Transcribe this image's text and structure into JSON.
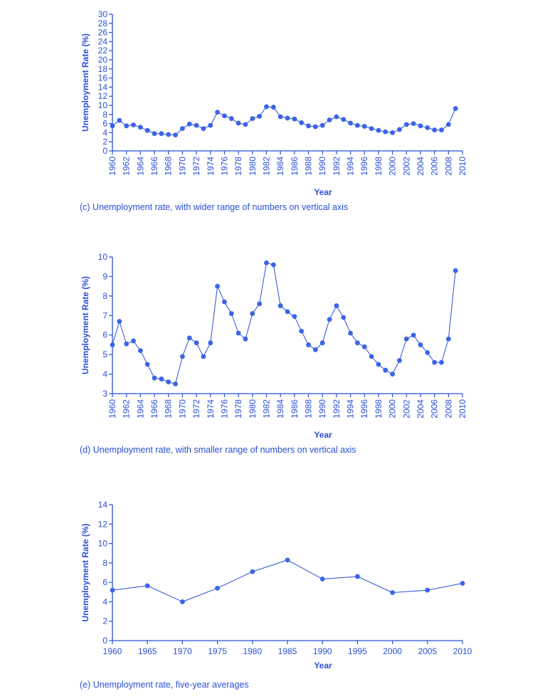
{
  "colors": {
    "accent": "#2a4fd6",
    "point": "#3a64e8"
  },
  "chart_data": [
    {
      "type": "line",
      "caption": "(c) Unemployment rate, with wider range of numbers on vertical axis",
      "xlabel": "Year",
      "ylabel": "Unemployment Rate (%)",
      "xlim": [
        1960,
        2010
      ],
      "ylim": [
        0,
        30
      ],
      "xticks": [
        1960,
        1962,
        1964,
        1966,
        1968,
        1970,
        1972,
        1974,
        1976,
        1978,
        1980,
        1982,
        1984,
        1986,
        1988,
        1990,
        1992,
        1994,
        1996,
        1998,
        2000,
        2002,
        2004,
        2006,
        2008,
        2010
      ],
      "yticks": [
        0,
        2,
        4,
        6,
        8,
        10,
        12,
        14,
        16,
        18,
        20,
        22,
        24,
        26,
        28,
        30
      ],
      "grid": false,
      "series": [
        {
          "x": [
            1960,
            1961,
            1962,
            1963,
            1964,
            1965,
            1966,
            1967,
            1968,
            1969,
            1970,
            1971,
            1972,
            1973,
            1974,
            1975,
            1976,
            1977,
            1978,
            1979,
            1980,
            1981,
            1982,
            1983,
            1984,
            1985,
            1986,
            1987,
            1988,
            1989,
            1990,
            1991,
            1992,
            1993,
            1994,
            1995,
            1996,
            1997,
            1998,
            1999,
            2000,
            2001,
            2002,
            2003,
            2004,
            2005,
            2006,
            2007,
            2008,
            2009
          ],
          "values": [
            5.5,
            6.7,
            5.5,
            5.7,
            5.2,
            4.5,
            3.8,
            3.8,
            3.6,
            3.5,
            4.9,
            5.9,
            5.6,
            4.9,
            5.6,
            8.5,
            7.7,
            7.1,
            6.1,
            5.8,
            7.1,
            7.6,
            9.7,
            9.6,
            7.5,
            7.2,
            7.0,
            6.2,
            5.5,
            5.3,
            5.6,
            6.8,
            7.5,
            6.9,
            6.1,
            5.6,
            5.4,
            4.9,
            4.5,
            4.2,
            4.0,
            4.7,
            5.8,
            6.0,
            5.5,
            5.1,
            4.6,
            4.6,
            5.8,
            9.3
          ]
        }
      ]
    },
    {
      "type": "line",
      "caption": "(d) Unemployment rate, with smaller range of numbers on vertical axis",
      "xlabel": "Year",
      "ylabel": "Unemployment Rate (%)",
      "xlim": [
        1960,
        2010
      ],
      "ylim": [
        3,
        10
      ],
      "xticks": [
        1960,
        1962,
        1964,
        1966,
        1968,
        1970,
        1972,
        1974,
        1976,
        1978,
        1980,
        1982,
        1984,
        1986,
        1988,
        1990,
        1992,
        1994,
        1996,
        1998,
        2000,
        2002,
        2004,
        2006,
        2008,
        2010
      ],
      "yticks": [
        3,
        4,
        5,
        6,
        7,
        8,
        9,
        10
      ],
      "grid": false,
      "series": [
        {
          "x": [
            1960,
            1961,
            1962,
            1963,
            1964,
            1965,
            1966,
            1967,
            1968,
            1969,
            1970,
            1971,
            1972,
            1973,
            1974,
            1975,
            1976,
            1977,
            1978,
            1979,
            1980,
            1981,
            1982,
            1983,
            1984,
            1985,
            1986,
            1987,
            1988,
            1989,
            1990,
            1991,
            1992,
            1993,
            1994,
            1995,
            1996,
            1997,
            1998,
            1999,
            2000,
            2001,
            2002,
            2003,
            2004,
            2005,
            2006,
            2007,
            2008,
            2009
          ],
          "values": [
            5.5,
            6.7,
            5.55,
            5.7,
            5.2,
            4.5,
            3.8,
            3.75,
            3.6,
            3.5,
            4.9,
            5.85,
            5.6,
            4.9,
            5.6,
            8.5,
            7.7,
            7.1,
            6.1,
            5.8,
            7.1,
            7.6,
            9.7,
            9.6,
            7.5,
            7.2,
            6.95,
            6.2,
            5.5,
            5.25,
            5.6,
            6.8,
            7.5,
            6.9,
            6.1,
            5.6,
            5.4,
            4.9,
            4.5,
            4.2,
            4.0,
            4.7,
            5.8,
            6.0,
            5.5,
            5.1,
            4.6,
            4.6,
            5.8,
            9.3
          ]
        }
      ]
    },
    {
      "type": "line",
      "caption": "(e) Unemployment rate, five-year averages",
      "xlabel": "Year",
      "ylabel": "Unemployment Rate (%)",
      "xlim": [
        1960,
        2010
      ],
      "ylim": [
        0,
        14
      ],
      "xticks": [
        1960,
        1965,
        1970,
        1975,
        1980,
        1985,
        1990,
        1995,
        2000,
        2005,
        2010
      ],
      "yticks": [
        0,
        2,
        4,
        6,
        8,
        10,
        12,
        14
      ],
      "grid": false,
      "series": [
        {
          "x": [
            1960,
            1965,
            1970,
            1975,
            1980,
            1985,
            1990,
            1995,
            2000,
            2005,
            2010
          ],
          "values": [
            5.2,
            5.65,
            4.0,
            5.4,
            7.1,
            8.3,
            6.35,
            6.6,
            4.95,
            5.2,
            5.9
          ]
        }
      ]
    }
  ]
}
